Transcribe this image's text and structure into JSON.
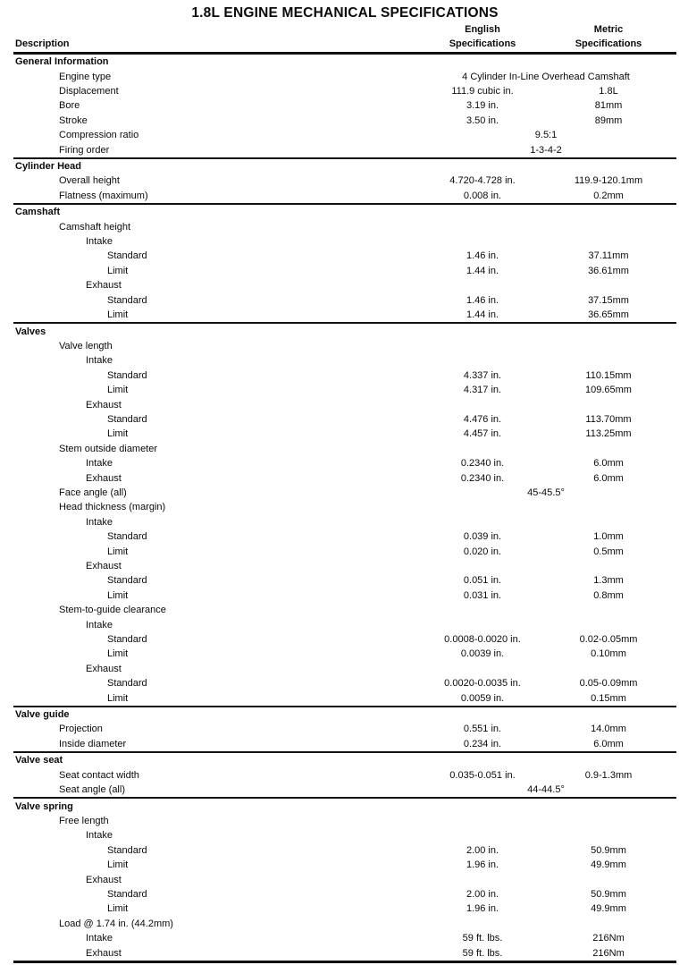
{
  "title": "1.8L ENGINE MECHANICAL SPECIFICATIONS",
  "header": {
    "description": "Description",
    "english_line1": "English",
    "english_line2": "Specifications",
    "metric_line1": "Metric",
    "metric_line2": "Specifications"
  },
  "colors": {
    "text": "#0a0a0a",
    "background": "#ffffff",
    "rule": "#111111"
  },
  "sections": [
    {
      "title": "General Information",
      "rows": [
        {
          "label": "Engine type",
          "indent": 1,
          "span": "4 Cylinder In-Line Overhead Camshaft"
        },
        {
          "label": "Displacement",
          "indent": 1,
          "english": "111.9 cubic in.",
          "metric": "1.8L"
        },
        {
          "label": "Bore",
          "indent": 1,
          "english": "3.19 in.",
          "metric": "81mm"
        },
        {
          "label": "Stroke",
          "indent": 1,
          "english": "3.50 in.",
          "metric": "89mm"
        },
        {
          "label": "Compression ratio",
          "indent": 1,
          "span": "9.5:1"
        },
        {
          "label": "Firing order",
          "indent": 1,
          "span": "1-3-4-2"
        }
      ]
    },
    {
      "title": "Cylinder Head",
      "rows": [
        {
          "label": "Overall height",
          "indent": 1,
          "english": "4.720-4.728 in.",
          "metric": "119.9-120.1mm"
        },
        {
          "label": "Flatness (maximum)",
          "indent": 1,
          "english": "0.008 in.",
          "metric": "0.2mm"
        }
      ]
    },
    {
      "title": "Camshaft",
      "rows": [
        {
          "label": "Camshaft height",
          "indent": 1
        },
        {
          "label": "Intake",
          "indent": 2
        },
        {
          "label": "Standard",
          "indent": 3,
          "english": "1.46 in.",
          "metric": "37.11mm"
        },
        {
          "label": "Limit",
          "indent": 3,
          "english": "1.44 in.",
          "metric": "36.61mm"
        },
        {
          "label": "Exhaust",
          "indent": 2
        },
        {
          "label": "Standard",
          "indent": 3,
          "english": "1.46 in.",
          "metric": "37.15mm"
        },
        {
          "label": "Limit",
          "indent": 3,
          "english": "1.44 in.",
          "metric": "36.65mm"
        }
      ]
    },
    {
      "title": "Valves",
      "rows": [
        {
          "label": "Valve length",
          "indent": 1
        },
        {
          "label": "Intake",
          "indent": 2
        },
        {
          "label": "Standard",
          "indent": 3,
          "english": "4.337 in.",
          "metric": "110.15mm"
        },
        {
          "label": "Limit",
          "indent": 3,
          "english": "4.317 in.",
          "metric": "109.65mm"
        },
        {
          "label": "Exhaust",
          "indent": 2
        },
        {
          "label": "Standard",
          "indent": 3,
          "english": "4.476 in.",
          "metric": "113.70mm"
        },
        {
          "label": "Limit",
          "indent": 3,
          "english": "4.457 in.",
          "metric": "113.25mm"
        },
        {
          "label": "Stem outside diameter",
          "indent": 1
        },
        {
          "label": "Intake",
          "indent": 2,
          "english": "0.2340 in.",
          "metric": "6.0mm"
        },
        {
          "label": "Exhaust",
          "indent": 2,
          "english": "0.2340 in.",
          "metric": "6.0mm"
        },
        {
          "label": "Face angle (all)",
          "indent": 1,
          "span": "45-45.5°"
        },
        {
          "label": "Head thickness (margin)",
          "indent": 1
        },
        {
          "label": "Intake",
          "indent": 2
        },
        {
          "label": "Standard",
          "indent": 3,
          "english": "0.039 in.",
          "metric": "1.0mm"
        },
        {
          "label": "Limit",
          "indent": 3,
          "english": "0.020 in.",
          "metric": "0.5mm"
        },
        {
          "label": "Exhaust",
          "indent": 2
        },
        {
          "label": "Standard",
          "indent": 3,
          "english": "0.051 in.",
          "metric": "1.3mm"
        },
        {
          "label": "Limit",
          "indent": 3,
          "english": "0.031 in.",
          "metric": "0.8mm"
        },
        {
          "label": "Stem-to-guide clearance",
          "indent": 1
        },
        {
          "label": "Intake",
          "indent": 2
        },
        {
          "label": "Standard",
          "indent": 3,
          "english": "0.0008-0.0020 in.",
          "metric": "0.02-0.05mm"
        },
        {
          "label": "Limit",
          "indent": 3,
          "english": "0.0039 in.",
          "metric": "0.10mm"
        },
        {
          "label": "Exhaust",
          "indent": 2
        },
        {
          "label": "Standard",
          "indent": 3,
          "english": "0.0020-0.0035 in.",
          "metric": "0.05-0.09mm"
        },
        {
          "label": "Limit",
          "indent": 3,
          "english": "0.0059 in.",
          "metric": "0.15mm"
        }
      ]
    },
    {
      "title": "Valve guide",
      "rows": [
        {
          "label": "Projection",
          "indent": 1,
          "english": "0.551 in.",
          "metric": "14.0mm"
        },
        {
          "label": "Inside diameter",
          "indent": 1,
          "english": "0.234 in.",
          "metric": "6.0mm"
        }
      ]
    },
    {
      "title": "Valve seat",
      "rows": [
        {
          "label": "Seat contact width",
          "indent": 1,
          "english": "0.035-0.051 in.",
          "metric": "0.9-1.3mm"
        },
        {
          "label": "Seat angle (all)",
          "indent": 1,
          "span": "44-44.5°"
        }
      ]
    },
    {
      "title": "Valve spring",
      "rows": [
        {
          "label": "Free length",
          "indent": 1
        },
        {
          "label": "Intake",
          "indent": 2
        },
        {
          "label": "Standard",
          "indent": 3,
          "english": "2.00 in.",
          "metric": "50.9mm"
        },
        {
          "label": "Limit",
          "indent": 3,
          "english": "1.96 in.",
          "metric": "49.9mm"
        },
        {
          "label": "Exhaust",
          "indent": 2
        },
        {
          "label": "Standard",
          "indent": 3,
          "english": "2.00 in.",
          "metric": "50.9mm"
        },
        {
          "label": "Limit",
          "indent": 3,
          "english": "1.96 in.",
          "metric": "49.9mm"
        },
        {
          "label": "Load @ 1.74 in. (44.2mm)",
          "indent": 1
        },
        {
          "label": "Intake",
          "indent": 2,
          "english": "59 ft. lbs.",
          "metric": "216Nm"
        },
        {
          "label": "Exhaust",
          "indent": 2,
          "english": "59 ft. lbs.",
          "metric": "216Nm"
        }
      ]
    }
  ]
}
